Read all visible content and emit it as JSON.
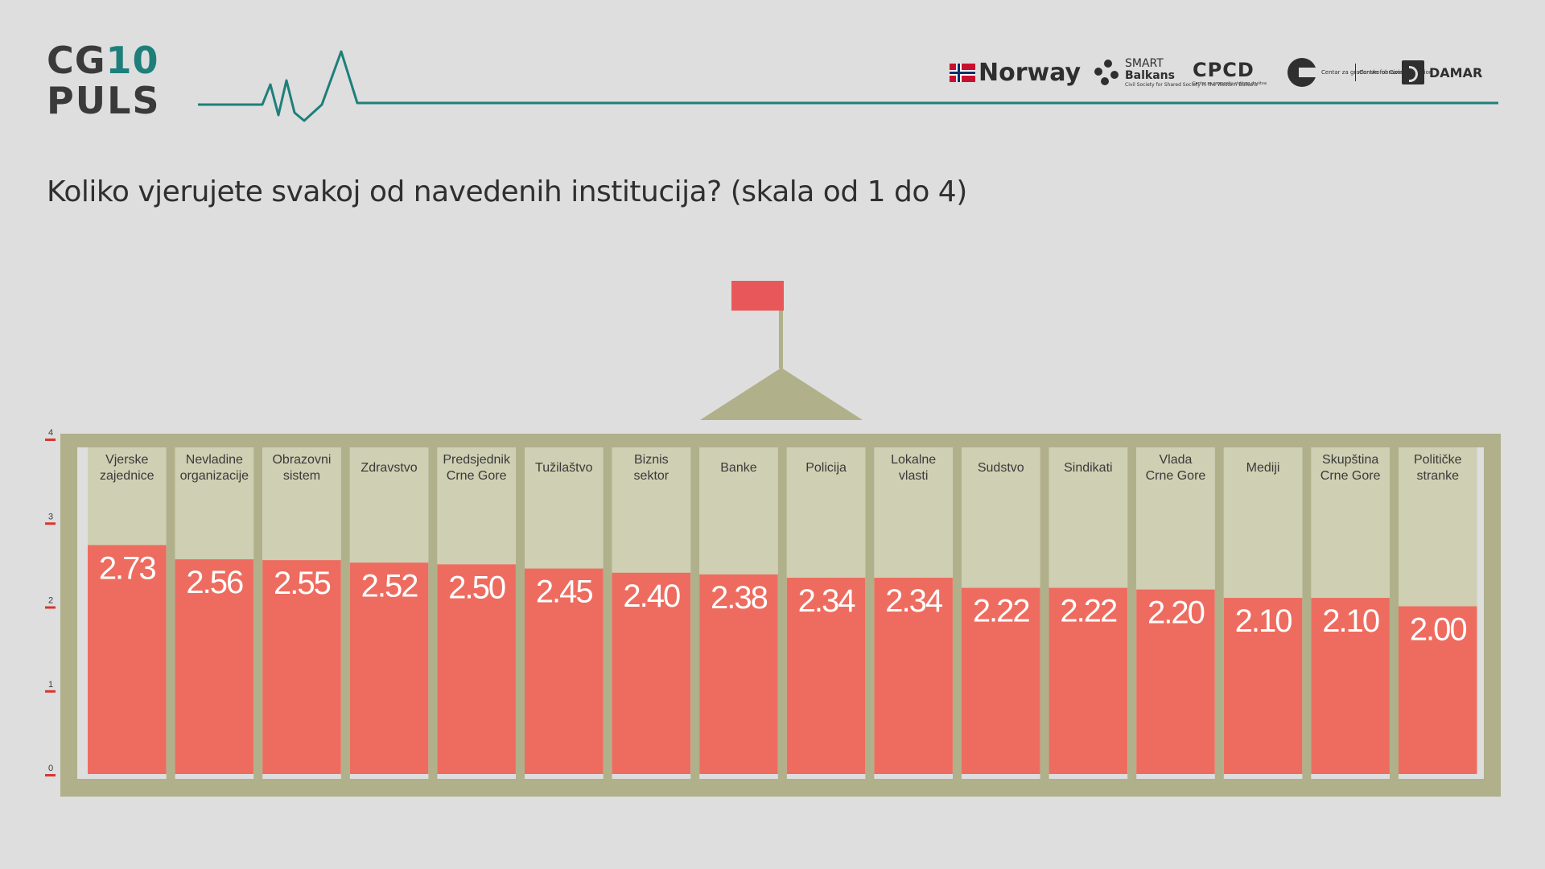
{
  "logo": {
    "cg": "CG",
    "num": "10",
    "puls": "PULS"
  },
  "partners": {
    "norway": "Norway",
    "smart_line1": "SMART",
    "smart_line2": "Balkans",
    "smart_tagline": "Civil Society for Shared Society in the Western Balkans",
    "cpcd": "CPCD",
    "cpcd_tagline": "Centar za promociju civilnog društva",
    "cgo_me": "Centar za građansko obrazovanje",
    "cgo_en": "Centre for Civic Education",
    "damar": "DAMAR"
  },
  "title": "Koliko vjerujete svakoj od navedenih institucija? (skala od 1 do 4)",
  "colors": {
    "background": "#dedede",
    "bar": "#ee6c5f",
    "frame": "#b0b08a",
    "slot": "#cfcfb3",
    "accent_teal": "#1e7f7a",
    "flag": "#e8585a",
    "tick": "#d9352c",
    "label_text": "#3a3a3a"
  },
  "chart_data": {
    "type": "bar",
    "title": "Koliko vjerujete svakoj od navedenih institucija? (skala od 1 do 4)",
    "categories": [
      [
        "Vjerske",
        "zajednice"
      ],
      [
        "Nevladine",
        "organizacije"
      ],
      [
        "Obrazovni",
        "sistem"
      ],
      [
        "Zdravstvo"
      ],
      [
        "Predsjednik",
        "Crne Gore"
      ],
      [
        "Tužilaštvo"
      ],
      [
        "Biznis",
        "sektor"
      ],
      [
        "Banke"
      ],
      [
        "Policija"
      ],
      [
        "Lokalne",
        "vlasti"
      ],
      [
        "Sudstvo"
      ],
      [
        "Sindikati"
      ],
      [
        "Vlada",
        "Crne Gore"
      ],
      [
        "Mediji"
      ],
      [
        "Skupština",
        "Crne Gore"
      ],
      [
        "Političke",
        "stranke"
      ]
    ],
    "values": [
      2.73,
      2.56,
      2.55,
      2.52,
      2.5,
      2.45,
      2.4,
      2.38,
      2.34,
      2.34,
      2.22,
      2.22,
      2.2,
      2.1,
      2.1,
      2.0
    ],
    "value_labels": [
      "2.73",
      "2.56",
      "2.55",
      "2.52",
      "2.50",
      "2.45",
      "2.40",
      "2.38",
      "2.34",
      "2.34",
      "2.22",
      "2.22",
      "2.20",
      "2.10",
      "2.10",
      "2.00"
    ],
    "y_ticks": [
      "0",
      "1",
      "2",
      "3",
      "4"
    ],
    "ylim": [
      0,
      4
    ],
    "grid": false,
    "legend": "none"
  }
}
